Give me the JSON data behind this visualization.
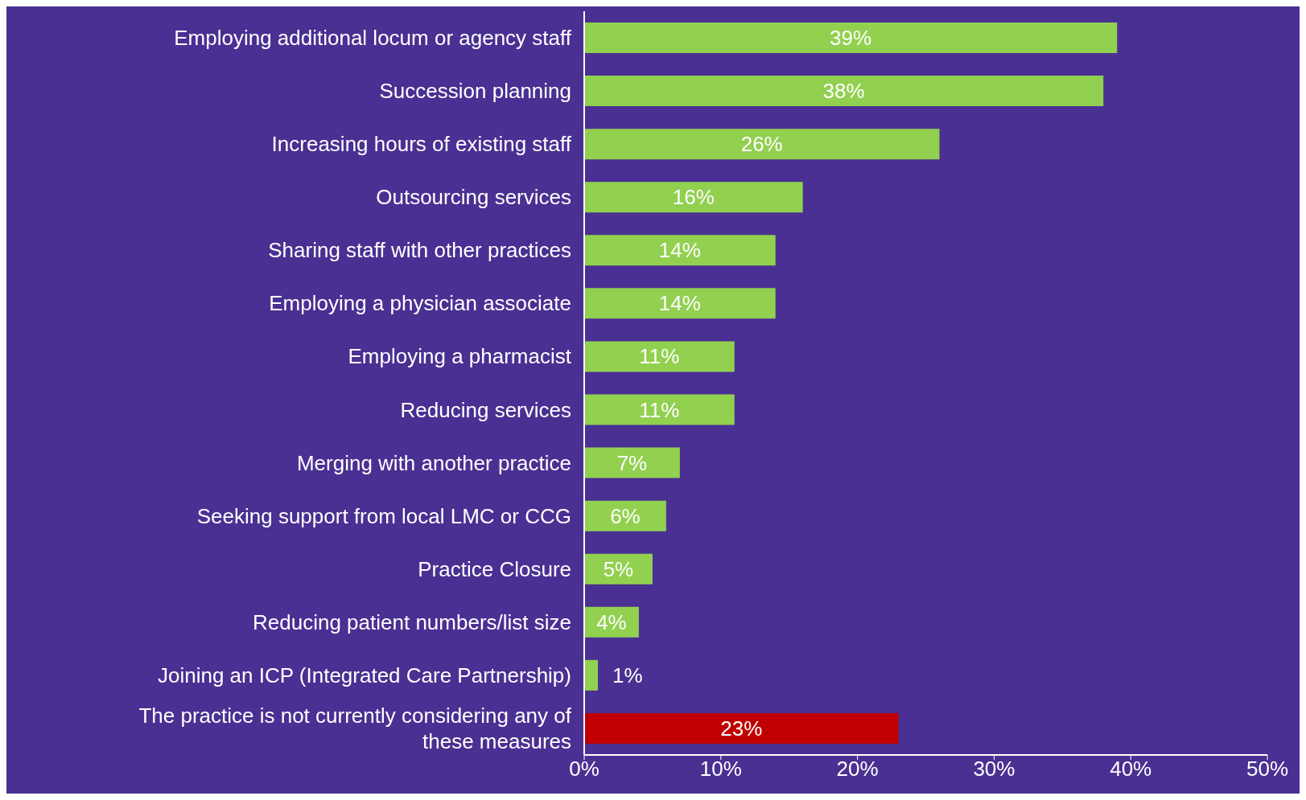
{
  "chart_data": {
    "type": "bar",
    "orientation": "horizontal",
    "categories": [
      "Employing additional locum or agency staff",
      "Succession planning",
      "Increasing hours of existing staff",
      "Outsourcing services",
      "Sharing staff with other practices",
      "Employing a physician associate",
      "Employing a pharmacist",
      "Reducing services",
      "Merging with another practice",
      "Seeking support from local LMC or CCG",
      "Practice Closure",
      "Reducing patient numbers/list size",
      "Joining an ICP (Integrated Care Partnership)",
      "The practice is not currently considering any of these measures"
    ],
    "values": [
      39,
      38,
      26,
      16,
      14,
      14,
      11,
      11,
      7,
      6,
      5,
      4,
      1,
      23
    ],
    "colors": [
      "#92d050",
      "#92d050",
      "#92d050",
      "#92d050",
      "#92d050",
      "#92d050",
      "#92d050",
      "#92d050",
      "#92d050",
      "#92d050",
      "#92d050",
      "#92d050",
      "#92d050",
      "#c00000"
    ],
    "value_labels": [
      "39%",
      "38%",
      "26%",
      "16%",
      "14%",
      "14%",
      "11%",
      "11%",
      "7%",
      "6%",
      "5%",
      "4%",
      "1%",
      "23%"
    ],
    "xlim": [
      0,
      50
    ],
    "xticks": [
      {
        "value": 0,
        "label": "0%"
      },
      {
        "value": 10,
        "label": "10%"
      },
      {
        "value": 20,
        "label": "20%"
      },
      {
        "value": 30,
        "label": "30%"
      },
      {
        "value": 40,
        "label": "40%"
      },
      {
        "value": 50,
        "label": "50%"
      }
    ],
    "grid": false,
    "legend": false
  }
}
